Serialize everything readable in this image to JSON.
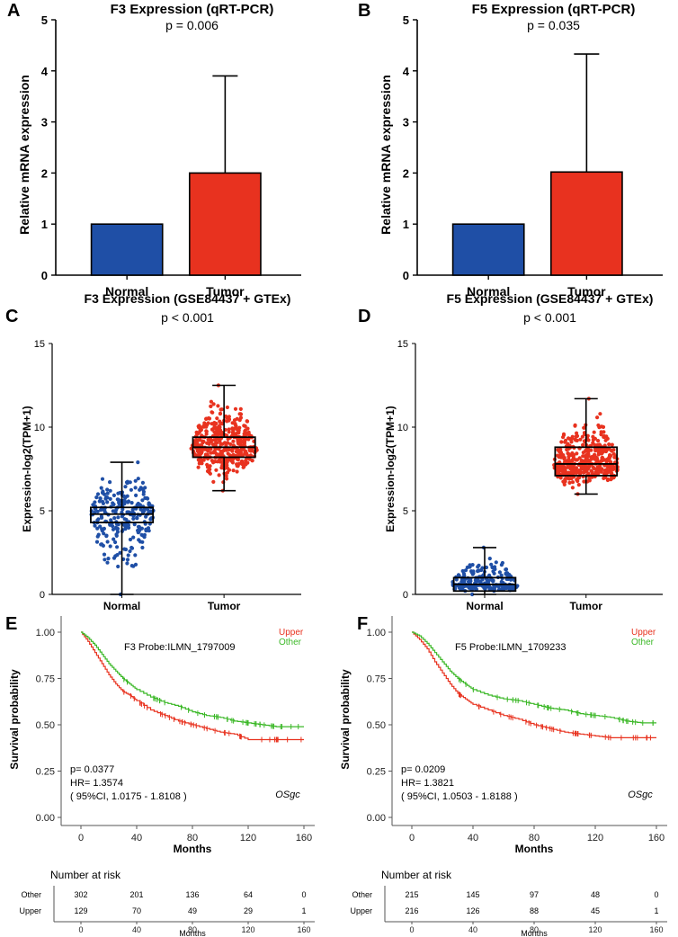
{
  "chart_data": [
    {
      "panel": "A",
      "type": "bar",
      "title": "F3 Expression (qRT-PCR)",
      "subtitle": "p = 0.006",
      "ylabel": "Relative mRNA expression",
      "categories": [
        "Normal",
        "Tumor"
      ],
      "values": [
        1,
        2
      ],
      "error_upper": [
        1,
        3.9
      ],
      "colors": [
        "#1f4fa6",
        "#e8321f"
      ],
      "ylim": [
        0,
        5
      ],
      "yticks": [
        "0",
        "1",
        "2",
        "3",
        "4",
        "5"
      ]
    },
    {
      "panel": "B",
      "type": "bar",
      "title": "F5 Expression (qRT-PCR)",
      "subtitle": "p = 0.035",
      "ylabel": "Relative mRNA expression",
      "categories": [
        "Normal",
        "Tumor"
      ],
      "values": [
        1,
        2.02
      ],
      "error_upper": [
        1,
        4.33
      ],
      "colors": [
        "#1f4fa6",
        "#e8321f"
      ],
      "ylim": [
        0,
        5
      ],
      "yticks": [
        "0",
        "1",
        "2",
        "3",
        "4",
        "5"
      ]
    },
    {
      "panel": "C",
      "type": "scatter",
      "title": "F3 Expression (GSE84437 + GTEx)",
      "subtitle": "p < 0.001",
      "ylabel": "Expression-log2(TPM+1)",
      "categories": [
        "Normal",
        "Tumor"
      ],
      "boxes": [
        {
          "name": "Normal",
          "min": 0,
          "q1": 4.3,
          "median": 4.8,
          "q3": 5.2,
          "max": 7.9,
          "n": 250,
          "color": "#1f4fa6"
        },
        {
          "name": "Tumor",
          "min": 6.2,
          "q1": 8.2,
          "median": 8.8,
          "q3": 9.4,
          "max": 12.5,
          "n": 420,
          "color": "#e8321f"
        }
      ],
      "ylim": [
        0,
        15
      ],
      "yticks": [
        "0",
        "5",
        "10",
        "15"
      ]
    },
    {
      "panel": "D",
      "type": "scatter",
      "title": "F5 Expression (GSE84437 + GTEx)",
      "subtitle": "p < 0.001",
      "ylabel": "Expression-log2(TPM+1)",
      "categories": [
        "Normal",
        "Tumor"
      ],
      "boxes": [
        {
          "name": "Normal",
          "min": 0,
          "q1": 0.2,
          "median": 0.6,
          "q3": 1.0,
          "max": 2.8,
          "n": 230,
          "color": "#1f4fa6"
        },
        {
          "name": "Tumor",
          "min": 6.0,
          "q1": 7.1,
          "median": 7.8,
          "q3": 8.8,
          "max": 11.7,
          "n": 420,
          "color": "#e8321f"
        }
      ],
      "ylim": [
        0,
        15
      ],
      "yticks": [
        "0",
        "5",
        "10",
        "15"
      ]
    },
    {
      "panel": "E",
      "type": "line",
      "subtitle": "F3 Probe:ILMN_1797009",
      "xlabel": "Months",
      "ylabel": "Survival probability",
      "xlim": [
        0,
        160
      ],
      "ylim": [
        0,
        1
      ],
      "xticks": [
        "0",
        "40",
        "80",
        "120",
        "160"
      ],
      "yticks": [
        "0.00",
        "0.25",
        "0.50",
        "0.75",
        "1.00"
      ],
      "legend": [
        {
          "name": "Upper",
          "color": "#e8321f"
        },
        {
          "name": "Other",
          "color": "#3cb828"
        }
      ],
      "series": [
        {
          "name": "Upper",
          "color": "#e8321f",
          "x": [
            0,
            5,
            10,
            15,
            20,
            25,
            30,
            35,
            40,
            50,
            60,
            70,
            80,
            90,
            100,
            110,
            120,
            130,
            140,
            150,
            160
          ],
          "y": [
            1.0,
            0.95,
            0.89,
            0.83,
            0.77,
            0.72,
            0.68,
            0.66,
            0.63,
            0.58,
            0.55,
            0.52,
            0.5,
            0.48,
            0.46,
            0.45,
            0.42,
            0.42,
            0.42,
            0.42,
            0.42
          ]
        },
        {
          "name": "Other",
          "color": "#3cb828",
          "x": [
            0,
            5,
            10,
            15,
            20,
            25,
            30,
            35,
            40,
            50,
            60,
            70,
            80,
            90,
            100,
            110,
            120,
            130,
            140,
            150,
            160
          ],
          "y": [
            1.0,
            0.97,
            0.93,
            0.88,
            0.83,
            0.79,
            0.75,
            0.72,
            0.69,
            0.65,
            0.62,
            0.6,
            0.57,
            0.55,
            0.54,
            0.52,
            0.51,
            0.5,
            0.49,
            0.49,
            0.49
          ]
        }
      ],
      "stats": {
        "p": "p= 0.0377",
        "hr": "HR= 1.3574",
        "ci": "( 95%CI, 1.0175 - 1.8108 )"
      },
      "annotation": "OSgc",
      "risk_table": {
        "title": "Number at risk",
        "xlabel": "Months",
        "xticks": [
          "0",
          "40",
          "80",
          "120",
          "160"
        ],
        "rows": [
          {
            "label": "Other",
            "values": [
              "302",
              "201",
              "136",
              "64",
              "0"
            ]
          },
          {
            "label": "Upper",
            "values": [
              "129",
              "70",
              "49",
              "29",
              "1"
            ]
          }
        ]
      }
    },
    {
      "panel": "F",
      "type": "line",
      "subtitle": "F5 Probe:ILMN_1709233",
      "xlabel": "Months",
      "ylabel": "Survival probability",
      "xlim": [
        0,
        160
      ],
      "ylim": [
        0,
        1
      ],
      "xticks": [
        "0",
        "40",
        "80",
        "120",
        "160"
      ],
      "yticks": [
        "0.00",
        "0.25",
        "0.50",
        "0.75",
        "1.00"
      ],
      "legend": [
        {
          "name": "Upper",
          "color": "#e8321f"
        },
        {
          "name": "Other",
          "color": "#3cb828"
        }
      ],
      "series": [
        {
          "name": "Upper",
          "color": "#e8321f",
          "x": [
            0,
            5,
            10,
            15,
            20,
            25,
            30,
            35,
            40,
            50,
            60,
            70,
            80,
            90,
            100,
            110,
            120,
            130,
            140,
            150,
            160
          ],
          "y": [
            1.0,
            0.96,
            0.91,
            0.84,
            0.78,
            0.72,
            0.67,
            0.64,
            0.61,
            0.58,
            0.55,
            0.53,
            0.5,
            0.48,
            0.46,
            0.45,
            0.44,
            0.43,
            0.43,
            0.43,
            0.43
          ]
        },
        {
          "name": "Other",
          "color": "#3cb828",
          "x": [
            0,
            5,
            10,
            15,
            20,
            25,
            30,
            35,
            40,
            50,
            60,
            70,
            80,
            90,
            100,
            110,
            120,
            130,
            140,
            150,
            160
          ],
          "y": [
            1.0,
            0.98,
            0.94,
            0.89,
            0.84,
            0.79,
            0.75,
            0.72,
            0.69,
            0.66,
            0.64,
            0.63,
            0.61,
            0.59,
            0.58,
            0.56,
            0.55,
            0.54,
            0.52,
            0.51,
            0.51
          ]
        }
      ],
      "stats": {
        "p": "p= 0.0209",
        "hr": "HR= 1.3821",
        "ci": "( 95%CI, 1.0503 - 1.8188 )"
      },
      "annotation": "OSgc",
      "risk_table": {
        "title": "Number at risk",
        "xlabel": "Months",
        "xticks": [
          "0",
          "40",
          "80",
          "120",
          "160"
        ],
        "rows": [
          {
            "label": "Other",
            "values": [
              "215",
              "145",
              "97",
              "48",
              "0"
            ]
          },
          {
            "label": "Upper",
            "values": [
              "216",
              "126",
              "88",
              "45",
              "1"
            ]
          }
        ]
      }
    }
  ]
}
